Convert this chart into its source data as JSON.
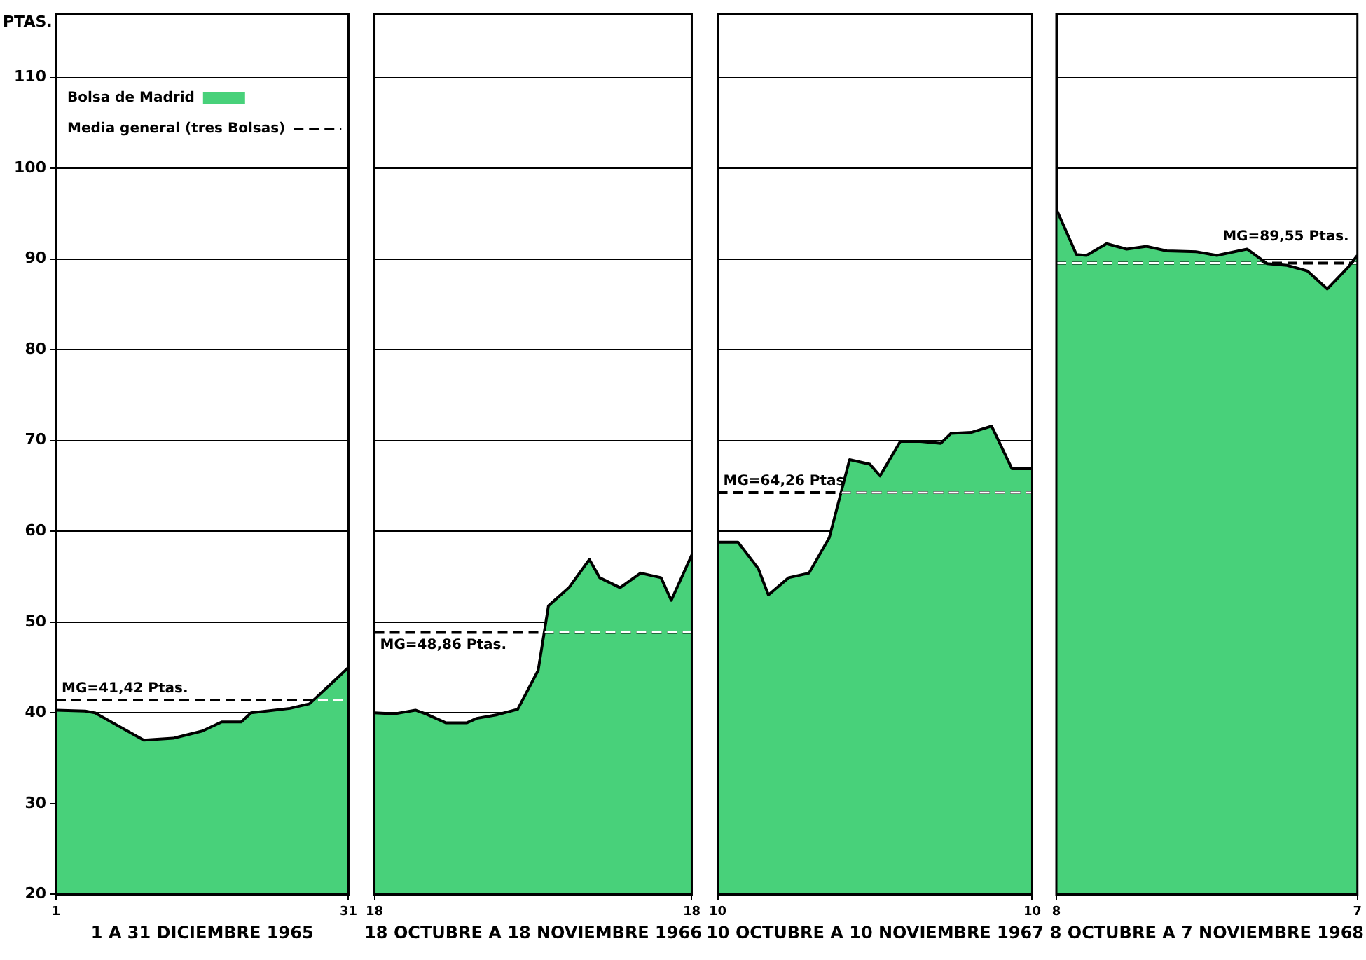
{
  "chart_data": [
    {
      "type": "area",
      "ylabel": "PTAS.",
      "xlabel": "1 A 31 DICIEMBRE 1965",
      "xlim": [
        "1965-12-01",
        "1965-12-31"
      ],
      "xticks": [
        {
          "value": "1965-12-01",
          "label": "1"
        },
        {
          "value": "1965-12-31",
          "label": "31"
        }
      ],
      "ylim": [
        20,
        117
      ],
      "yticks": [
        20,
        30,
        40,
        50,
        60,
        70,
        80,
        90,
        100,
        110
      ],
      "grid": "y",
      "legend": "top left",
      "marker": "none",
      "series": [
        {
          "name": "Bolsa de Madrid",
          "color": "#48d17a",
          "x": [
            "1965-12-01",
            "1965-12-04",
            "1965-12-05",
            "1965-12-10",
            "1965-12-13",
            "1965-12-16",
            "1965-12-18",
            "1965-12-20",
            "1965-12-21",
            "1965-12-25",
            "1965-12-27",
            "1965-12-29",
            "1965-12-31"
          ],
          "values": [
            40.3,
            40.2,
            40,
            37,
            37.2,
            38,
            39,
            39,
            40,
            40.5,
            41,
            43,
            45
          ]
        },
        {
          "name": "Media general (tres Bolsas)",
          "type": "line",
          "line_style": "dashed",
          "color": "#000000",
          "x": [
            "1965-12-01",
            "1965-12-31"
          ],
          "values": [
            41.42,
            41.42
          ]
        }
      ],
      "annotations": [
        {
          "text": "MG=41,42 Ptas.",
          "x": "1965-12-01",
          "y": 41.42
        }
      ]
    },
    {
      "type": "area",
      "xlabel": "18 OCTUBRE A 18 NOVIEMBRE 1966",
      "xlim": [
        "1966-10-18",
        "1966-11-18"
      ],
      "xticks": [
        {
          "value": "1966-10-18",
          "label": "18"
        },
        {
          "value": "1966-11-18",
          "label": "18"
        }
      ],
      "ylim": [
        20,
        117
      ],
      "yticks": [
        20,
        30,
        40,
        50,
        60,
        70,
        80,
        90,
        100,
        110
      ],
      "grid": "y",
      "tick_labels": "x",
      "marker": "none",
      "series": [
        {
          "color": "#48d17a",
          "x": [
            "1966-10-18",
            "1966-10-20",
            "1966-10-22",
            "1966-10-23",
            "1966-10-25",
            "1966-10-27",
            "1966-10-28",
            "1966-10-30",
            "1966-11-01",
            "1966-11-03",
            "1966-11-04",
            "1966-11-06",
            "1966-11-08",
            "1966-11-09",
            "1966-11-11",
            "1966-11-13",
            "1966-11-15",
            "1966-11-16",
            "1966-11-18"
          ],
          "values": [
            40,
            39.9,
            40.3,
            39.9,
            38.9,
            38.9,
            39.4,
            39.8,
            40.4,
            44.7,
            51.8,
            53.8,
            56.9,
            54.9,
            53.8,
            55.4,
            54.9,
            52.4,
            57.4
          ]
        },
        {
          "type": "line",
          "line_style": "dashed",
          "color": "#000000",
          "x": [
            "1966-10-18",
            "1966-11-18"
          ],
          "values": [
            48.86,
            48.86
          ]
        }
      ],
      "annotations": [
        {
          "text": "MG=48,86 Ptas.",
          "x": "1966-10-18",
          "y": 48.86
        }
      ]
    },
    {
      "type": "area",
      "xlabel": "10 OCTUBRE A 10 NOVIEMBRE 1967",
      "xlim": [
        "1967-10-10",
        "1967-11-10"
      ],
      "xticks": [
        {
          "value": "1967-10-10",
          "label": "10"
        },
        {
          "value": "1967-11-10",
          "label": "10"
        }
      ],
      "ylim": [
        20,
        117
      ],
      "yticks": [
        20,
        30,
        40,
        50,
        60,
        70,
        80,
        90,
        100,
        110
      ],
      "grid": "y",
      "tick_labels": "x",
      "marker": "none",
      "series": [
        {
          "color": "#48d17a",
          "x": [
            "1967-10-10",
            "1967-10-12",
            "1967-10-14",
            "1967-10-15",
            "1967-10-17",
            "1967-10-19",
            "1967-10-21",
            "1967-10-23",
            "1967-10-25",
            "1967-10-26",
            "1967-10-28",
            "1967-10-30",
            "1967-11-01",
            "1967-11-02",
            "1967-11-04",
            "1967-11-06",
            "1967-11-08",
            "1967-11-10"
          ],
          "values": [
            58.8,
            58.8,
            55.9,
            53,
            54.9,
            55.4,
            59.3,
            67.9,
            67.4,
            66.1,
            69.9,
            69.9,
            69.7,
            70.8,
            70.9,
            71.6,
            66.9,
            66.9
          ]
        },
        {
          "type": "line",
          "line_style": "dashed",
          "color": "#000000",
          "x": [
            "1967-10-10",
            "1967-11-10"
          ],
          "values": [
            64.26,
            64.26
          ]
        }
      ],
      "annotations": [
        {
          "text": "MG=64,26 Ptas",
          "x": "1967-10-10",
          "y": 64.26
        }
      ]
    },
    {
      "type": "area",
      "xlabel": "8 OCTUBRE A 7 NOVIEMBRE 1968",
      "xlim": [
        "1968-10-08",
        "1968-11-07"
      ],
      "xticks": [
        {
          "value": "1968-10-08",
          "label": "8"
        },
        {
          "value": "1968-11-07",
          "label": "7"
        }
      ],
      "ylim": [
        20,
        117
      ],
      "yticks": [
        20,
        30,
        40,
        50,
        60,
        70,
        80,
        90,
        100,
        110
      ],
      "grid": "y",
      "tick_labels": "x",
      "marker": "none",
      "series": [
        {
          "color": "#48d17a",
          "x": [
            "1968-10-08",
            "1968-10-10",
            "1968-10-11",
            "1968-10-13",
            "1968-10-15",
            "1968-10-17",
            "1968-10-19",
            "1968-10-22",
            "1968-10-24",
            "1968-10-27",
            "1968-10-29",
            "1968-10-31",
            "1968-11-02",
            "1968-11-04",
            "1968-11-06",
            "1968-11-07"
          ],
          "values": [
            95.5,
            90.5,
            90.4,
            91.7,
            91.1,
            91.4,
            90.9,
            90.8,
            90.4,
            91.1,
            89.5,
            89.3,
            88.7,
            86.7,
            89,
            90.4
          ]
        },
        {
          "type": "line",
          "line_style": "dashed",
          "color": "#000000",
          "x": [
            "1968-10-08",
            "1968-11-07"
          ],
          "values": [
            89.55,
            89.55
          ]
        }
      ],
      "annotations": [
        {
          "text": "MG=89,55 Ptas.",
          "x": "1968-10-24",
          "y": 89.55
        }
      ]
    }
  ]
}
